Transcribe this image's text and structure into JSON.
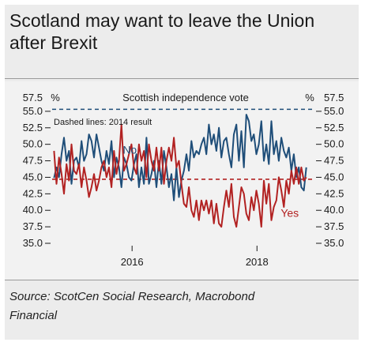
{
  "title": {
    "line1": "Scotland may want to leave the Union",
    "line2": "after Brexit"
  },
  "source": {
    "line1": "Source: ScotCen Social Research, Macrobond",
    "line2": "Financial"
  },
  "chart_data": {
    "type": "line",
    "title": "Scottish independence vote",
    "annotation": "Dashed lines: 2014 result",
    "left_unit": "%",
    "right_unit": "%",
    "ylim": [
      35.0,
      57.5
    ],
    "yticks": [
      35.0,
      37.5,
      40.0,
      42.5,
      45.0,
      47.5,
      50.0,
      52.5,
      55.0,
      57.5
    ],
    "ytick_labels": [
      "35.0",
      "37.5",
      "40.0",
      "42.5",
      "45.0",
      "47.5",
      "50.0",
      "52.5",
      "55.0",
      "57.5"
    ],
    "xlim": [
      2014.72,
      2018.92
    ],
    "xticks": [
      2016,
      2018
    ],
    "xtick_labels": [
      "2016",
      "2018"
    ],
    "grid": false,
    "reference_lines": [
      {
        "name": "No 2014 result",
        "value": 55.3,
        "color": "#1f4e79",
        "style": "dashed"
      },
      {
        "name": "Yes 2014 result",
        "value": 44.7,
        "color": "#b22222",
        "style": "dashed"
      }
    ],
    "series": [
      {
        "name": "No",
        "color": "#1f4e79",
        "label_at": [
          2015.85,
          48.6
        ],
        "x": [
          2014.75,
          2014.79,
          2014.83,
          2014.87,
          2014.91,
          2014.95,
          2014.99,
          2015.03,
          2015.07,
          2015.11,
          2015.15,
          2015.19,
          2015.23,
          2015.27,
          2015.31,
          2015.35,
          2015.39,
          2015.43,
          2015.47,
          2015.51,
          2015.55,
          2015.59,
          2015.63,
          2015.67,
          2015.71,
          2015.75,
          2015.79,
          2015.83,
          2015.87,
          2015.91,
          2015.95,
          2015.99,
          2016.03,
          2016.07,
          2016.11,
          2016.15,
          2016.19,
          2016.23,
          2016.27,
          2016.31,
          2016.35,
          2016.39,
          2016.43,
          2016.47,
          2016.51,
          2016.55,
          2016.59,
          2016.63,
          2016.67,
          2016.71,
          2016.75,
          2016.79,
          2016.83,
          2016.87,
          2016.91,
          2016.95,
          2016.99,
          2017.03,
          2017.07,
          2017.11,
          2017.15,
          2017.19,
          2017.23,
          2017.27,
          2017.31,
          2017.35,
          2017.39,
          2017.43,
          2017.47,
          2017.51,
          2017.55,
          2017.59,
          2017.63,
          2017.67,
          2017.71,
          2017.75,
          2017.79,
          2017.83,
          2017.87,
          2017.91,
          2017.95,
          2017.99,
          2018.03,
          2018.07,
          2018.11,
          2018.15,
          2018.19,
          2018.23,
          2018.27,
          2018.31,
          2018.35,
          2018.39,
          2018.43,
          2018.47,
          2018.51,
          2018.55,
          2018.59,
          2018.63,
          2018.67,
          2018.71,
          2018.75,
          2018.79
        ],
        "values": [
          44.9,
          46.5,
          45.0,
          48.5,
          51.0,
          47.5,
          49.0,
          44.0,
          47.5,
          48.0,
          46.5,
          50.5,
          47.5,
          48.5,
          51.5,
          50.5,
          48.0,
          51.5,
          49.5,
          47.5,
          46.0,
          49.0,
          47.0,
          50.5,
          45.0,
          48.0,
          46.5,
          43.5,
          48.0,
          47.0,
          45.0,
          44.5,
          47.0,
          48.5,
          43.5,
          46.5,
          44.0,
          51.0,
          44.0,
          45.5,
          47.5,
          43.5,
          47.5,
          44.0,
          49.0,
          46.5,
          43.5,
          45.5,
          41.5,
          46.5,
          42.0,
          44.5,
          46.0,
          48.5,
          46.0,
          50.5,
          48.0,
          49.0,
          48.5,
          50.0,
          51.0,
          48.5,
          53.0,
          50.0,
          51.5,
          49.0,
          52.5,
          48.0,
          50.5,
          51.0,
          48.5,
          46.5,
          51.5,
          53.0,
          47.5,
          52.0,
          46.5,
          54.5,
          53.5,
          50.5,
          51.5,
          48.5,
          50.0,
          53.5,
          47.5,
          50.0,
          47.0,
          53.5,
          48.5,
          50.5,
          47.5,
          51.0,
          49.0,
          48.0,
          49.5,
          46.0,
          48.5,
          45.0,
          46.5,
          43.5,
          43.0,
          46.5
        ]
      },
      {
        "name": "Yes",
        "color": "#b22222",
        "label_at": [
          2018.38,
          39.0
        ],
        "x": [
          2014.75,
          2014.79,
          2014.83,
          2014.87,
          2014.91,
          2014.95,
          2014.99,
          2015.03,
          2015.07,
          2015.11,
          2015.15,
          2015.19,
          2015.23,
          2015.27,
          2015.31,
          2015.35,
          2015.39,
          2015.43,
          2015.47,
          2015.51,
          2015.55,
          2015.59,
          2015.63,
          2015.67,
          2015.71,
          2015.75,
          2015.79,
          2015.83,
          2015.87,
          2015.91,
          2015.95,
          2015.99,
          2016.03,
          2016.07,
          2016.11,
          2016.15,
          2016.19,
          2016.23,
          2016.27,
          2016.31,
          2016.35,
          2016.39,
          2016.43,
          2016.47,
          2016.51,
          2016.55,
          2016.59,
          2016.63,
          2016.67,
          2016.71,
          2016.75,
          2016.79,
          2016.83,
          2016.87,
          2016.91,
          2016.95,
          2016.99,
          2017.03,
          2017.07,
          2017.11,
          2017.15,
          2017.19,
          2017.23,
          2017.27,
          2017.31,
          2017.35,
          2017.39,
          2017.43,
          2017.47,
          2017.51,
          2017.55,
          2017.59,
          2017.63,
          2017.67,
          2017.71,
          2017.75,
          2017.79,
          2017.83,
          2017.87,
          2017.91,
          2017.95,
          2017.99,
          2018.03,
          2018.07,
          2018.11,
          2018.15,
          2018.19,
          2018.23,
          2018.27,
          2018.31,
          2018.35,
          2018.39,
          2018.43,
          2018.47,
          2018.51,
          2018.55,
          2018.59,
          2018.63,
          2018.67,
          2018.71,
          2018.75,
          2018.79
        ],
        "values": [
          49.0,
          44.0,
          48.0,
          45.5,
          42.5,
          47.0,
          44.5,
          50.0,
          46.0,
          45.5,
          47.0,
          43.5,
          46.5,
          44.5,
          42.0,
          43.5,
          45.5,
          43.0,
          44.5,
          46.5,
          47.5,
          45.0,
          46.5,
          43.5,
          49.0,
          45.5,
          47.5,
          53.0,
          46.0,
          47.0,
          48.5,
          50.0,
          46.5,
          45.5,
          50.0,
          47.5,
          49.0,
          45.0,
          50.0,
          47.5,
          46.0,
          49.5,
          46.0,
          49.5,
          44.0,
          47.5,
          49.5,
          47.5,
          51.0,
          46.5,
          47.5,
          44.0,
          41.0,
          40.5,
          43.5,
          40.0,
          39.0,
          41.5,
          38.5,
          41.5,
          40.0,
          41.5,
          39.5,
          41.5,
          38.0,
          41.0,
          38.0,
          37.5,
          40.5,
          43.0,
          40.5,
          44.0,
          39.0,
          37.5,
          40.5,
          43.5,
          42.5,
          39.5,
          38.5,
          42.0,
          40.0,
          43.0,
          41.0,
          37.5,
          44.5,
          41.0,
          44.0,
          38.5,
          40.5,
          41.5,
          45.0,
          43.0,
          40.5,
          44.5,
          42.5,
          46.0,
          44.0,
          46.5,
          44.0,
          46.5,
          44.5,
          45.0
        ]
      }
    ]
  }
}
